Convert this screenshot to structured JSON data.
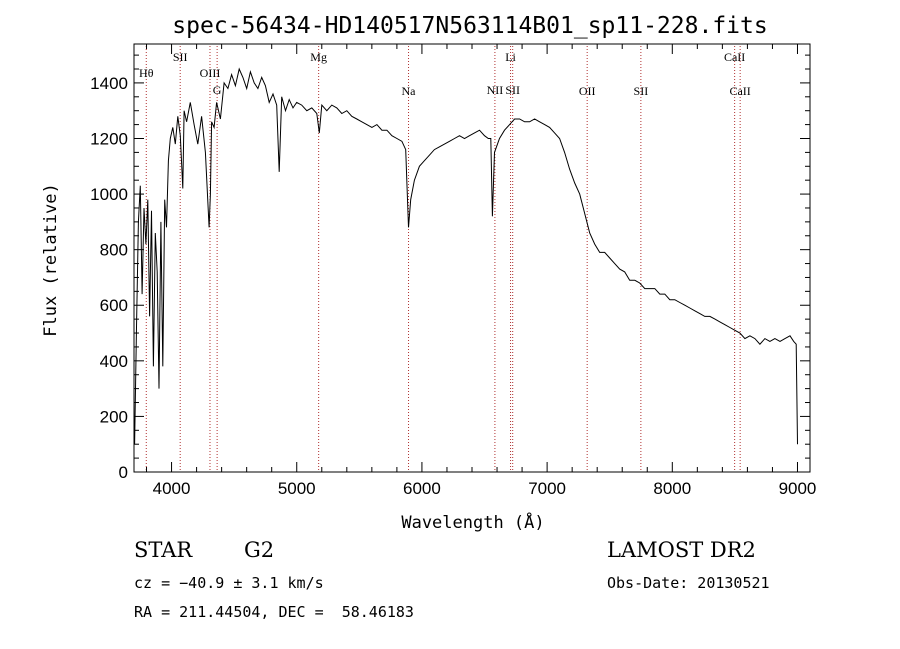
{
  "chart_data": {
    "type": "line",
    "title": "spec-56434-HD140517N563114B01_sp11-228.fits",
    "xlabel": "Wavelength (Å)",
    "ylabel": "Flux (relative)",
    "xlim": [
      3700,
      9100
    ],
    "ylim": [
      0,
      1540
    ],
    "x_ticks": [
      4000,
      5000,
      6000,
      7000,
      8000,
      9000
    ],
    "y_ticks": [
      0,
      200,
      400,
      600,
      800,
      1000,
      1200,
      1400
    ],
    "series": [
      {
        "color": "#000000",
        "x": [
          3705,
          3720,
          3735,
          3750,
          3765,
          3780,
          3795,
          3810,
          3825,
          3840,
          3855,
          3870,
          3885,
          3900,
          3915,
          3930,
          3945,
          3960,
          3975,
          3990,
          4010,
          4030,
          4050,
          4070,
          4090,
          4100,
          4120,
          4150,
          4180,
          4210,
          4240,
          4270,
          4300,
          4310,
          4320,
          4340,
          4360,
          4390,
          4420,
          4450,
          4480,
          4510,
          4540,
          4570,
          4600,
          4630,
          4660,
          4690,
          4720,
          4750,
          4780,
          4810,
          4840,
          4860,
          4880,
          4910,
          4940,
          4970,
          5000,
          5040,
          5080,
          5120,
          5160,
          5180,
          5200,
          5240,
          5280,
          5320,
          5360,
          5400,
          5440,
          5480,
          5520,
          5560,
          5600,
          5640,
          5680,
          5720,
          5760,
          5800,
          5840,
          5870,
          5893,
          5910,
          5940,
          5980,
          6020,
          6060,
          6100,
          6140,
          6180,
          6220,
          6260,
          6300,
          6340,
          6380,
          6420,
          6460,
          6500,
          6530,
          6550,
          6563,
          6580,
          6620,
          6660,
          6700,
          6740,
          6780,
          6820,
          6860,
          6900,
          6940,
          6980,
          7020,
          7060,
          7100,
          7140,
          7180,
          7220,
          7260,
          7300,
          7340,
          7380,
          7420,
          7460,
          7500,
          7540,
          7580,
          7620,
          7660,
          7700,
          7740,
          7780,
          7820,
          7860,
          7900,
          7940,
          7980,
          8020,
          8060,
          8100,
          8140,
          8180,
          8220,
          8260,
          8300,
          8340,
          8380,
          8420,
          8460,
          8500,
          8540,
          8580,
          8620,
          8660,
          8700,
          8740,
          8780,
          8820,
          8860,
          8900,
          8940,
          8970,
          8990,
          9000
        ],
        "y": [
          100,
          520,
          900,
          1030,
          640,
          950,
          820,
          980,
          560,
          940,
          380,
          860,
          720,
          300,
          900,
          380,
          980,
          880,
          1120,
          1200,
          1240,
          1180,
          1280,
          1210,
          1020,
          1300,
          1260,
          1330,
          1250,
          1180,
          1280,
          1150,
          880,
          1000,
          1260,
          1240,
          1330,
          1270,
          1400,
          1380,
          1430,
          1390,
          1450,
          1420,
          1380,
          1440,
          1400,
          1380,
          1420,
          1390,
          1330,
          1360,
          1320,
          1080,
          1350,
          1300,
          1340,
          1310,
          1330,
          1320,
          1300,
          1310,
          1290,
          1220,
          1320,
          1300,
          1320,
          1310,
          1290,
          1300,
          1280,
          1270,
          1260,
          1250,
          1240,
          1250,
          1230,
          1230,
          1210,
          1200,
          1190,
          1160,
          880,
          980,
          1050,
          1100,
          1120,
          1140,
          1160,
          1170,
          1180,
          1190,
          1200,
          1210,
          1200,
          1210,
          1220,
          1230,
          1210,
          1200,
          1200,
          920,
          1150,
          1200,
          1230,
          1250,
          1270,
          1270,
          1260,
          1260,
          1270,
          1260,
          1250,
          1240,
          1220,
          1200,
          1150,
          1090,
          1040,
          1000,
          930,
          860,
          820,
          790,
          790,
          770,
          750,
          730,
          720,
          690,
          690,
          680,
          660,
          660,
          660,
          640,
          640,
          620,
          620,
          610,
          600,
          590,
          580,
          570,
          560,
          560,
          550,
          540,
          530,
          520,
          510,
          500,
          480,
          490,
          480,
          460,
          480,
          470,
          480,
          470,
          480,
          490,
          470,
          460,
          100
        ]
      }
    ],
    "line_markers": [
      {
        "label": "Hθ",
        "x": 3798,
        "row": 2
      },
      {
        "label": "SII",
        "x": 4069,
        "row": 1
      },
      {
        "label": "OIII",
        "x": 4307,
        "row": 2
      },
      {
        "label": "G",
        "x": 4364,
        "row": 3
      },
      {
        "label": "Mg",
        "x": 5175,
        "row": 1
      },
      {
        "label": "Na",
        "x": 5893,
        "row": 4
      },
      {
        "label": "NII",
        "x": 6583,
        "row": 3
      },
      {
        "label": "Li",
        "x": 6708,
        "row": 1
      },
      {
        "label": "SII",
        "x": 6725,
        "row": 3
      },
      {
        "label": "OII",
        "x": 7320,
        "row": 4
      },
      {
        "label": "SII",
        "x": 7749,
        "row": 4
      },
      {
        "label": "CaII",
        "x": 8498,
        "row": 1
      },
      {
        "label": "CaII",
        "x": 8542,
        "row": 4
      }
    ]
  },
  "info": {
    "class": "STAR",
    "subclass": "G2",
    "survey": "LAMOST DR2",
    "cz": "cz = −40.9 ± 3.1 km/s",
    "obs_date": "Obs-Date: 20130521",
    "radec": "RA = 211.44504, DEC =  58.46183"
  }
}
